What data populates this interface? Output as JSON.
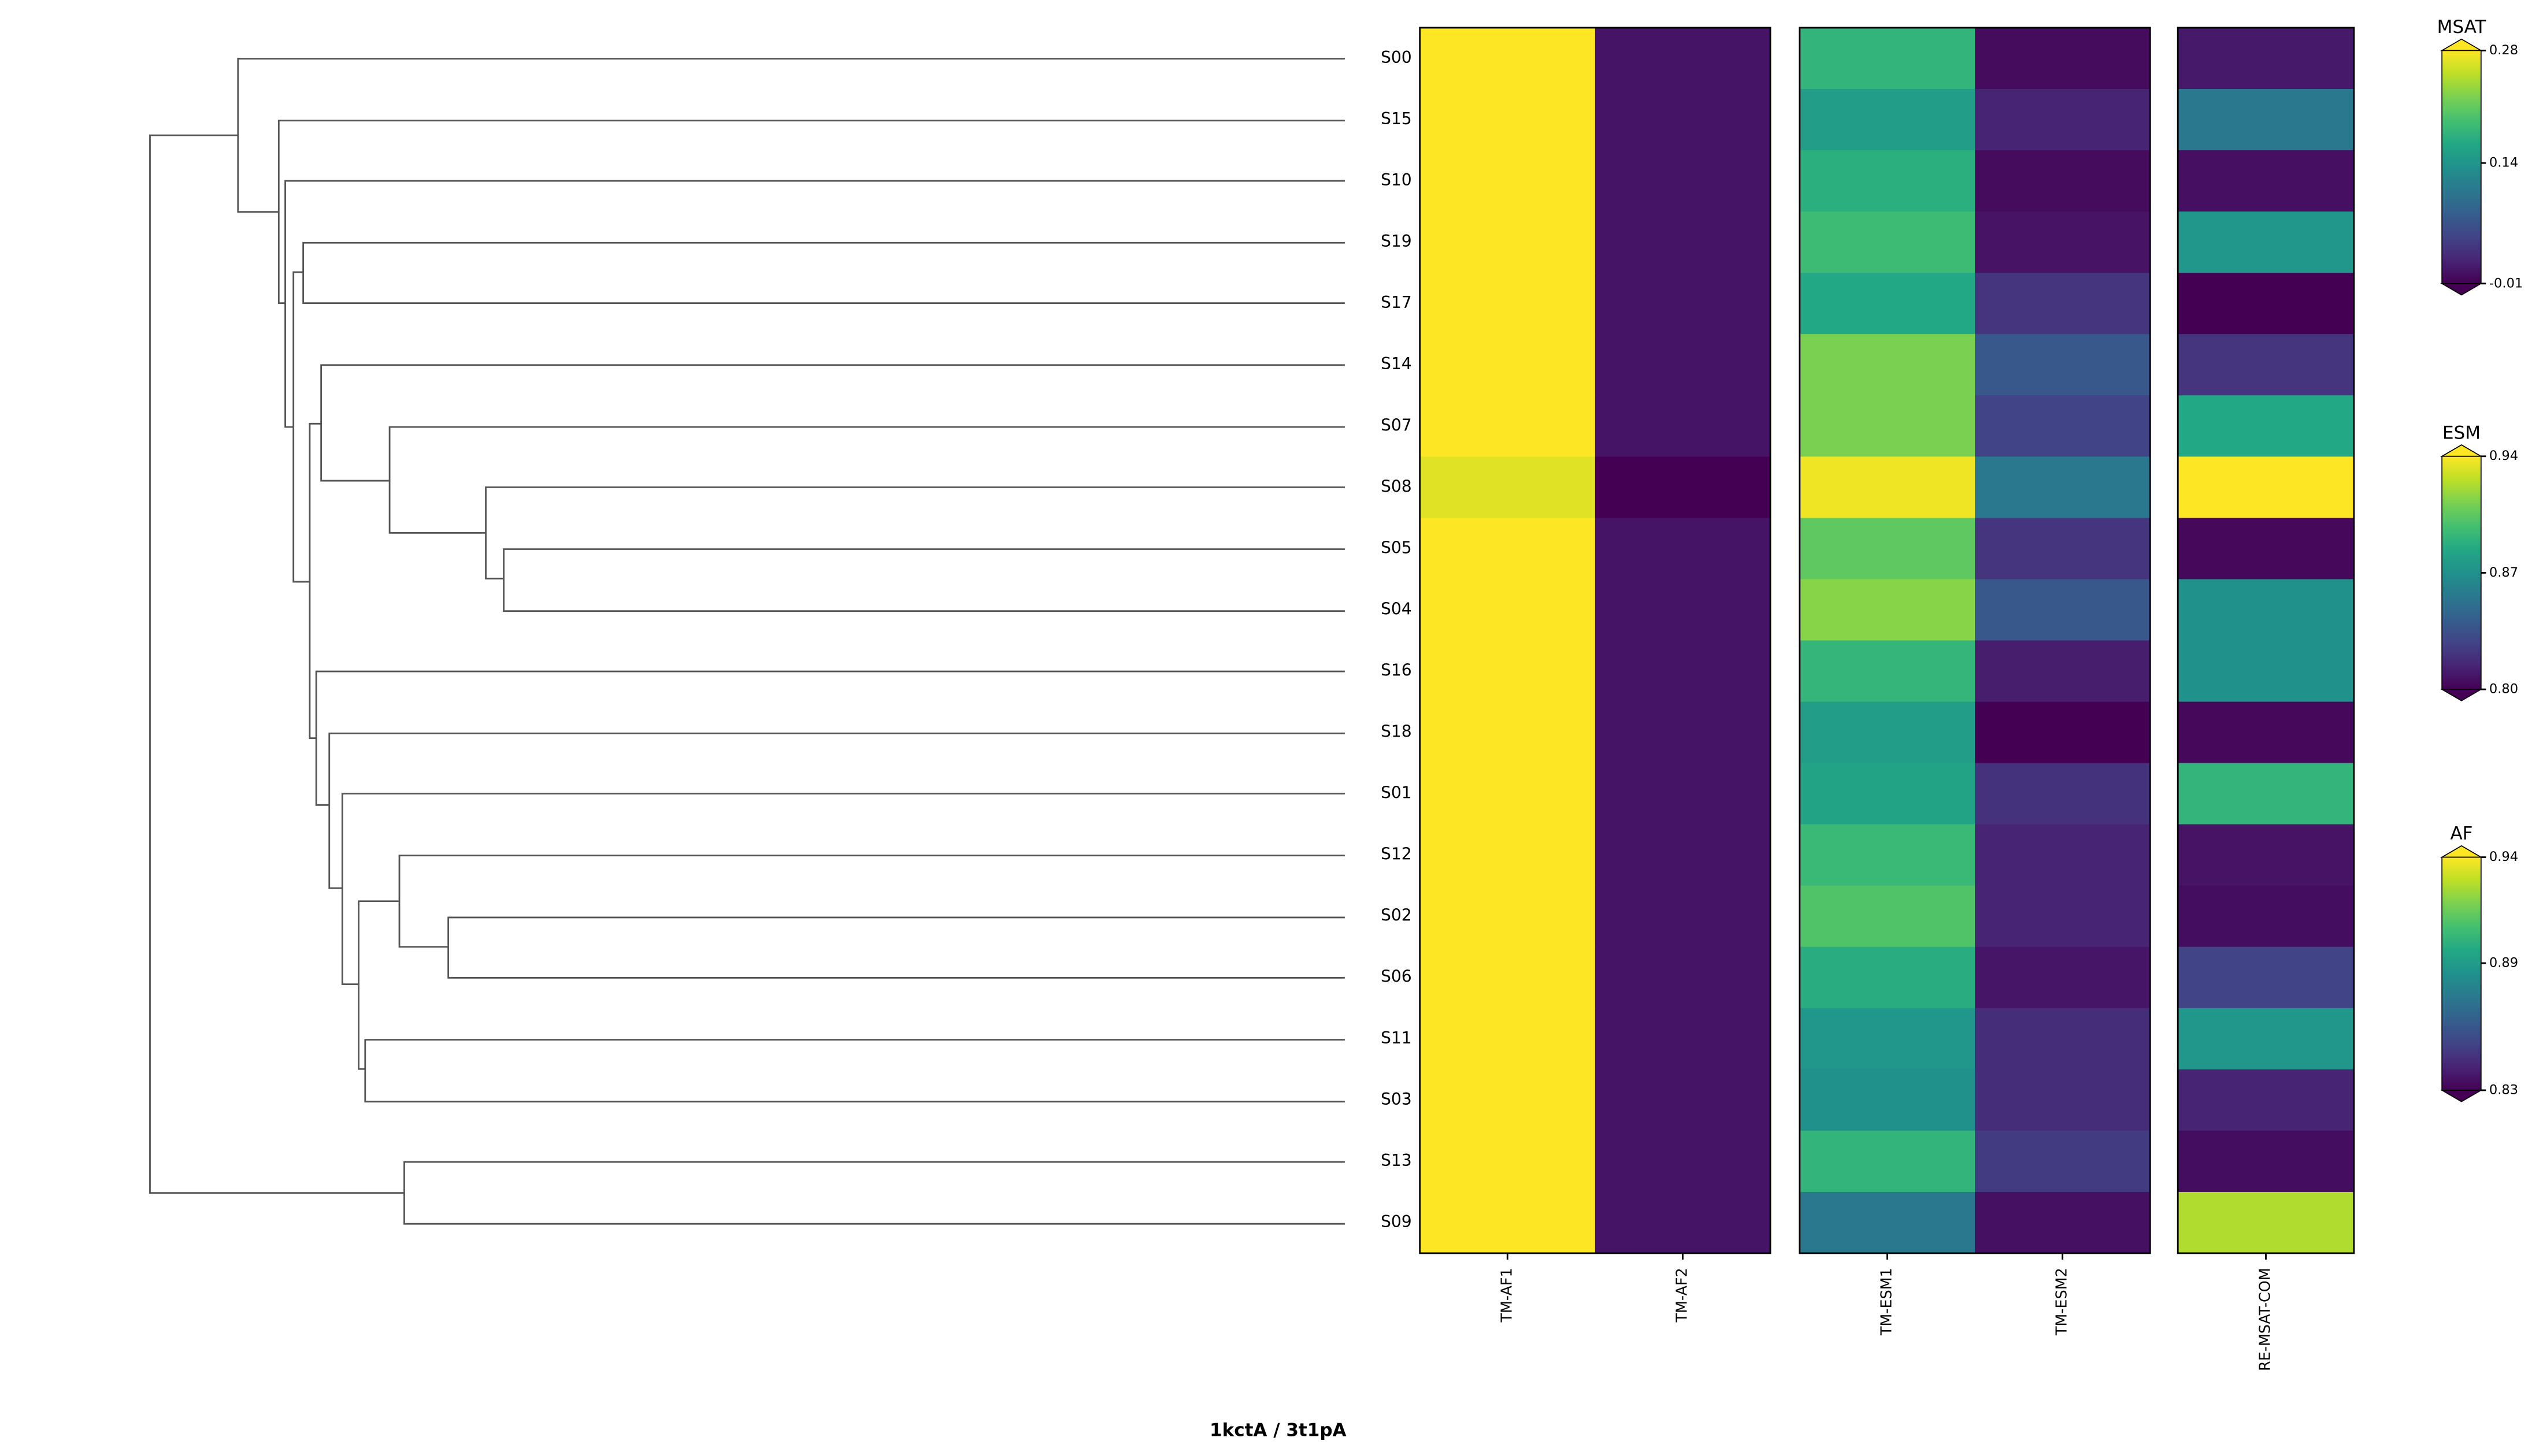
{
  "chart_data": {
    "type": "heatmap",
    "title": "1kctA / 3t1pA",
    "colormap": "viridis",
    "rows": [
      "S00",
      "S15",
      "S10",
      "S19",
      "S17",
      "S14",
      "S07",
      "S08",
      "S05",
      "S04",
      "S16",
      "S18",
      "S01",
      "S12",
      "S02",
      "S06",
      "S11",
      "S03",
      "S13",
      "S09"
    ],
    "panels": [
      {
        "columns": [
          "TM-AF1",
          "TM-AF2"
        ],
        "colorbar": {
          "label": "AF",
          "lim": [
            0.83,
            0.94
          ],
          "ticks": [
            0.83,
            0.89,
            0.94
          ]
        },
        "values": [
          [
            0.94,
            0.836
          ],
          [
            0.94,
            0.836
          ],
          [
            0.94,
            0.836
          ],
          [
            0.94,
            0.836
          ],
          [
            0.94,
            0.836
          ],
          [
            0.94,
            0.836
          ],
          [
            0.94,
            0.836
          ],
          [
            0.935,
            0.83
          ],
          [
            0.94,
            0.836
          ],
          [
            0.94,
            0.836
          ],
          [
            0.94,
            0.836
          ],
          [
            0.94,
            0.836
          ],
          [
            0.94,
            0.836
          ],
          [
            0.94,
            0.836
          ],
          [
            0.94,
            0.836
          ],
          [
            0.94,
            0.836
          ],
          [
            0.94,
            0.836
          ],
          [
            0.94,
            0.836
          ],
          [
            0.94,
            0.836
          ],
          [
            0.94,
            0.836
          ]
        ]
      },
      {
        "columns": [
          "TM-ESM1",
          "TM-ESM2"
        ],
        "colorbar": {
          "label": "ESM",
          "lim": [
            0.8,
            0.94
          ],
          "ticks": [
            {
              "value": 0.8,
              "label": "0.80"
            },
            0.87,
            0.94
          ]
        },
        "values": [
          [
            0.891,
            0.804
          ],
          [
            0.877,
            0.814
          ],
          [
            0.888,
            0.804
          ],
          [
            0.895,
            0.807
          ],
          [
            0.884,
            0.821
          ],
          [
            0.912,
            0.838
          ],
          [
            0.912,
            0.828
          ],
          [
            0.937,
            0.856
          ],
          [
            0.905,
            0.821
          ],
          [
            0.915,
            0.838
          ],
          [
            0.892,
            0.811
          ],
          [
            0.877,
            0.8
          ],
          [
            0.881,
            0.82
          ],
          [
            0.894,
            0.814
          ],
          [
            0.901,
            0.814
          ],
          [
            0.887,
            0.808
          ],
          [
            0.873,
            0.818
          ],
          [
            0.87,
            0.818
          ],
          [
            0.891,
            0.824
          ],
          [
            0.856,
            0.806
          ]
        ]
      },
      {
        "columns": [
          "RE-MSAT-COM"
        ],
        "colorbar": {
          "label": "MSAT",
          "lim": [
            -0.01,
            0.28
          ],
          "ticks": [
            -0.01,
            0.14,
            0.28
          ]
        },
        "values": [
          [
            0.01
          ],
          [
            0.106
          ],
          [
            0.002
          ],
          [
            0.141
          ],
          [
            -0.01
          ],
          [
            0.034
          ],
          [
            0.164
          ],
          [
            0.28
          ],
          [
            -0.004
          ],
          [
            0.135
          ],
          [
            0.135
          ],
          [
            -0.004
          ],
          [
            0.179
          ],
          [
            0.005
          ],
          [
            0.0
          ],
          [
            0.048
          ],
          [
            0.141
          ],
          [
            0.019
          ],
          [
            0.0
          ],
          [
            0.245
          ]
        ]
      }
    ]
  }
}
